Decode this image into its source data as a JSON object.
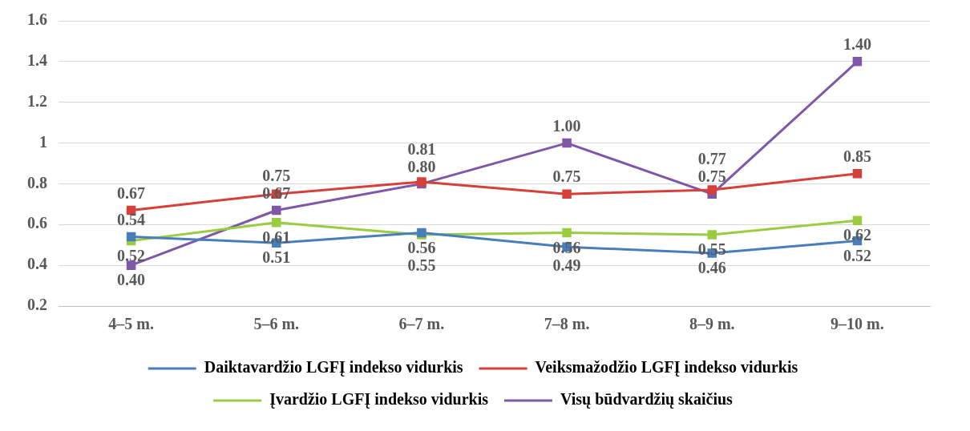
{
  "chart_data": {
    "type": "line",
    "categories": [
      "4–5 m.",
      "5–6 m.",
      "6–7 m.",
      "7–8 m.",
      "8–9 m.",
      "9–10 m."
    ],
    "series": [
      {
        "name": "Daiktavardžio LGFĮ indekso vidurkis",
        "color": "#4a7ebb",
        "values": [
          0.54,
          0.51,
          0.56,
          0.49,
          0.46,
          0.52
        ],
        "value_labels": [
          "0.54",
          "0.51",
          "0.56",
          "0.49",
          "0.46",
          "0.52"
        ]
      },
      {
        "name": "Veiksmažodžio LGFĮ indekso vidurkis",
        "color": "#d6403a",
        "values": [
          0.67,
          0.75,
          0.81,
          0.75,
          0.77,
          0.85
        ],
        "value_labels": [
          "0.67",
          "0.75",
          "0.81",
          "0.75",
          "0.77",
          "0.85"
        ]
      },
      {
        "name": "Įvardžio LGFĮ indekso vidurkis",
        "color": "#9bcc3f",
        "values": [
          0.52,
          0.61,
          0.55,
          0.56,
          0.55,
          0.62
        ],
        "value_labels": [
          "0.52",
          "0.61",
          "0.55",
          "0.56",
          "0.55",
          "0.62"
        ]
      },
      {
        "name": "Visų būdvardžių skaičius",
        "color": "#7e57a8",
        "values": [
          0.4,
          0.67,
          0.8,
          1.0,
          0.75,
          1.4
        ],
        "value_labels": [
          "0.40",
          "0.67",
          "0.80",
          "1.00",
          "0.75",
          "1.40"
        ]
      }
    ],
    "ylim": [
      0.2,
      1.6
    ],
    "yticks": [
      0.2,
      0.4,
      0.6,
      0.8,
      1,
      1.2,
      1.4,
      1.6
    ],
    "grid": "y",
    "legend": "bottom",
    "marker": "square",
    "line_style": "solid"
  }
}
